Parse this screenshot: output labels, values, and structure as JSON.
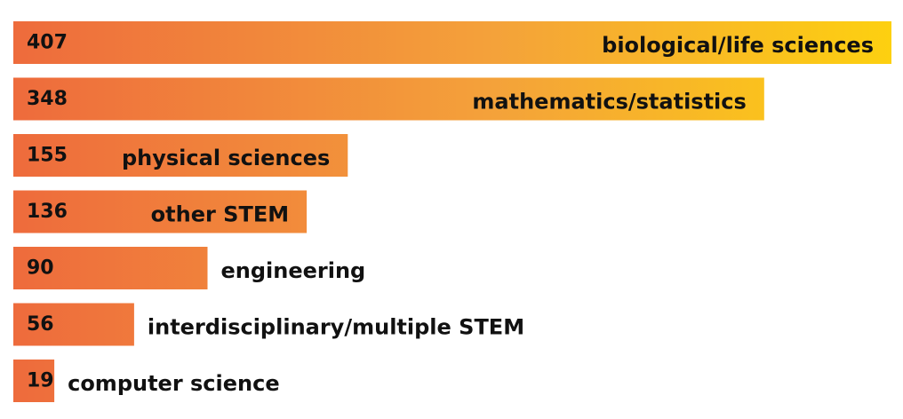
{
  "chart_data": {
    "type": "bar",
    "orientation": "horizontal",
    "categories": [
      "biological/life sciences",
      "mathematics/statistics",
      "physical sciences",
      "other STEM",
      "engineering",
      "interdisciplinary/multiple STEM",
      "computer science"
    ],
    "values": [
      407,
      348,
      155,
      136,
      90,
      56,
      19
    ],
    "value_labels": [
      "407",
      "348",
      "155",
      "136",
      "90",
      "56",
      "19"
    ],
    "xlim": [
      0,
      407
    ],
    "grid": false,
    "legend": "none",
    "colors": {
      "gradient_start": "#EE6B3C",
      "gradient_mid": "#F4A23A",
      "gradient_end": "#FDD010",
      "text": "#111111"
    }
  }
}
